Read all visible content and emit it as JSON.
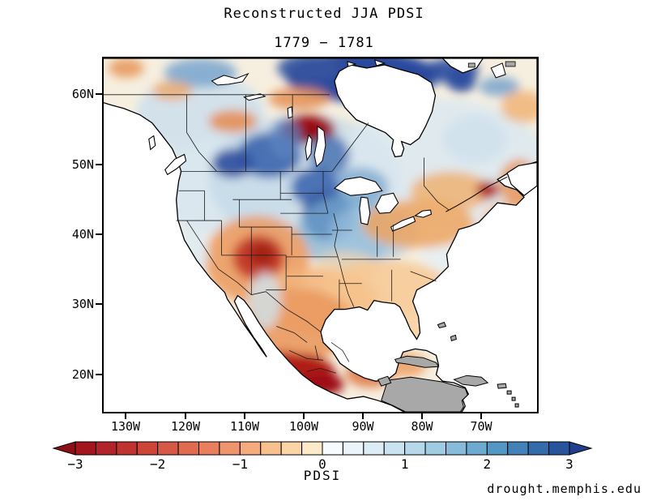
{
  "title": "Reconstructed JJA PDSI",
  "subtitle": "1779 − 1781",
  "attribution": "drought.memphis.edu",
  "axes": {
    "lat_ticks": [
      "60N",
      "50N",
      "40N",
      "30N",
      "20N"
    ],
    "lon_ticks": [
      "130W",
      "120W",
      "110W",
      "100W",
      "90W",
      "80W",
      "70W"
    ]
  },
  "colorbar": {
    "label": "PDSI",
    "ticks": [
      "−3",
      "−2",
      "−1",
      "0",
      "1",
      "2",
      "3"
    ],
    "min": -3,
    "max": 3,
    "step": 0.25,
    "segment_colors": [
      "#a4151d",
      "#b3242a",
      "#c03430",
      "#cc4537",
      "#d75844",
      "#e06b51",
      "#e97f5e",
      "#f0946d",
      "#f5ab7d",
      "#f9c08f",
      "#fcd5a7",
      "#fdeac9",
      "#f7fbfd",
      "#eaf4f9",
      "#dbedf5",
      "#c9e3f0",
      "#b5d8ea",
      "#9fcce3",
      "#86bcda",
      "#6caacf",
      "#5597c4",
      "#4382b8",
      "#346cab",
      "#28549c"
    ],
    "left_arrow_color": "#8c1016",
    "right_arrow_color": "#223f8e"
  },
  "chart_data": {
    "type": "heatmap",
    "title": "Reconstructed JJA PDSI",
    "period": "1779 − 1781",
    "variable": "PDSI",
    "region": "North America",
    "lat_range": [
      "20N",
      "60N"
    ],
    "lon_range": [
      "130W",
      "70W"
    ],
    "colorbar_range": [
      -3,
      3
    ],
    "colorbar_step": 0.25,
    "legend_position": "bottom",
    "no_data_color": "#a8a8a8",
    "notable_features": [
      {
        "region": "Manitoba / Lake Winnipeg area",
        "pdsi": "≤ −3 (severe drought)"
      },
      {
        "region": "Four Corners / Colorado Plateau",
        "pdsi": "−2 to −3 (drought)"
      },
      {
        "region": "Central and southern Mexico",
        "pdsi": "≤ −3 (severe drought)"
      },
      {
        "region": "Southern Ontario / Quebec band",
        "pdsi": "−1 to −2 (dry)"
      },
      {
        "region": "Upper Midwest (Iowa / Minnesota)",
        "pdsi": "+2 to +3 (wet)"
      },
      {
        "region": "Northern Canada (NWT / Nunavut)",
        "pdsi": "+2 to +3 (wet)"
      },
      {
        "region": "Caribbean islands / Central America",
        "pdsi": "no data (gray)"
      }
    ]
  }
}
